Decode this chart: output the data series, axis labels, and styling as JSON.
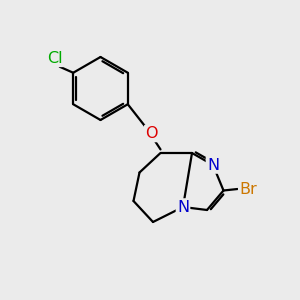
{
  "background_color": "#ebebeb",
  "atom_colors": {
    "C": "#000000",
    "N": "#0000cc",
    "O": "#dd0000",
    "Br": "#cc7700",
    "Cl": "#00aa00"
  },
  "bond_color": "#000000",
  "bond_width": 1.6,
  "font_size_atom": 11.5,
  "figsize": [
    3.0,
    3.0
  ],
  "dpi": 100
}
